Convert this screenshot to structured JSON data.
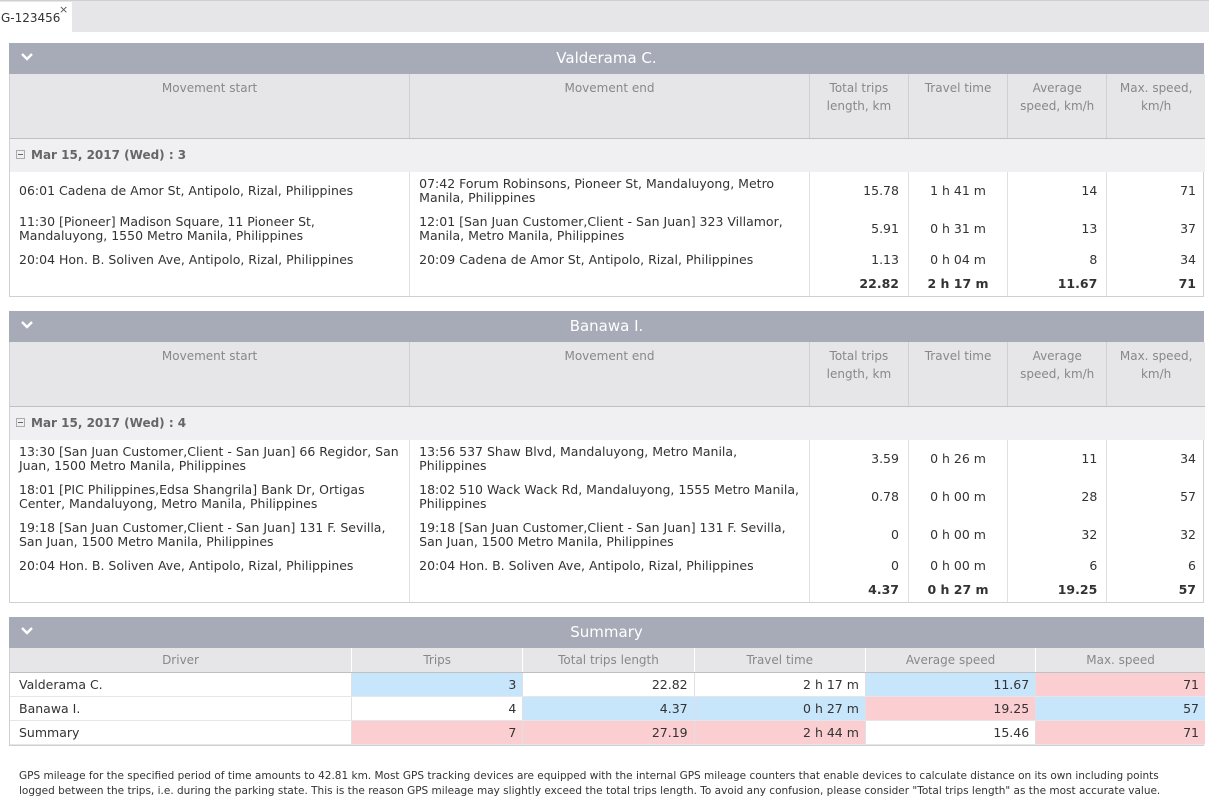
{
  "tab": {
    "label": "G-123456",
    "close": "×"
  },
  "columns": {
    "movement_start": "Movement start",
    "movement_end": "Movement end",
    "total_trips_length": "Total trips length, km",
    "travel_time": "Travel time",
    "average_speed": "Average speed, km/h",
    "max_speed": "Max. speed, km/h"
  },
  "drivers": [
    {
      "name": "Valderama C.",
      "group": "Mar 15, 2017 (Wed) : 3",
      "rows": [
        {
          "start": "06:01 Cadena de Amor St, Antipolo, Rizal, Philippines",
          "end": "07:42 Forum Robinsons, Pioneer St, Mandaluyong, Metro Manila, Philippines",
          "length": "15.78",
          "time": "1 h 41 m",
          "avg": "14",
          "max": "71"
        },
        {
          "start": "11:30 [Pioneer] Madison Square, 11 Pioneer St, Mandaluyong, 1550 Metro Manila, Philippines",
          "end": "12:01 [San Juan Customer,Client - San Juan] 323 Villamor, Manila, Metro Manila, Philippines",
          "length": "5.91",
          "time": "0 h 31 m",
          "avg": "13",
          "max": "37"
        },
        {
          "start": "20:04 Hon. B. Soliven Ave, Antipolo, Rizal, Philippines",
          "end": "20:09 Cadena de Amor St, Antipolo, Rizal, Philippines",
          "length": "1.13",
          "time": "0 h 04 m",
          "avg": "8",
          "max": "34"
        }
      ],
      "total": {
        "length": "22.82",
        "time": "2 h 17 m",
        "avg": "11.67",
        "max": "71"
      }
    },
    {
      "name": "Banawa I.",
      "group": "Mar 15, 2017 (Wed) : 4",
      "rows": [
        {
          "start": "13:30 [San Juan Customer,Client - San Juan] 66 Regidor, San Juan, 1500 Metro Manila, Philippines",
          "end": "13:56 537 Shaw Blvd, Mandaluyong, Metro Manila, Philippines",
          "length": "3.59",
          "time": "0 h 26 m",
          "avg": "11",
          "max": "34"
        },
        {
          "start": "18:01 [PIC Philippines,Edsa Shangrila] Bank Dr, Ortigas Center, Mandaluyong, Metro Manila, Philippines",
          "end": "18:02 510 Wack Wack Rd, Mandaluyong, 1555 Metro Manila, Philippines",
          "length": "0.78",
          "time": "0 h 00 m",
          "avg": "28",
          "max": "57"
        },
        {
          "start": "19:18 [San Juan Customer,Client - San Juan] 131 F. Sevilla, San Juan, 1500 Metro Manila, Philippines",
          "end": "19:18 [San Juan Customer,Client - San Juan] 131 F. Sevilla, San Juan, 1500 Metro Manila, Philippines",
          "length": "0",
          "time": "0 h 00 m",
          "avg": "32",
          "max": "32"
        },
        {
          "start": "20:04 Hon. B. Soliven Ave, Antipolo, Rizal, Philippines",
          "end": "20:04 Hon. B. Soliven Ave, Antipolo, Rizal, Philippines",
          "length": "0",
          "time": "0 h 00 m",
          "avg": "6",
          "max": "6"
        }
      ],
      "total": {
        "length": "4.37",
        "time": "0 h 27 m",
        "avg": "19.25",
        "max": "57"
      }
    }
  ],
  "summary": {
    "title": "Summary",
    "headers": [
      "Driver",
      "Trips",
      "Total trips length",
      "Travel time",
      "Average speed",
      "Max. speed"
    ],
    "rows": [
      {
        "cells": [
          "Valderama C.",
          "3",
          "22.82",
          "2 h 17 m",
          "11.67",
          "71"
        ],
        "highlight": [
          "",
          "blue",
          "",
          "",
          "blue",
          "red"
        ]
      },
      {
        "cells": [
          "Banawa I.",
          "4",
          "4.37",
          "0 h 27 m",
          "19.25",
          "57"
        ],
        "highlight": [
          "",
          "",
          "blue",
          "blue",
          "red",
          "blue"
        ]
      },
      {
        "cells": [
          "Summary",
          "7",
          "27.19",
          "2 h 44 m",
          "15.46",
          "71"
        ],
        "highlight": [
          "",
          "red",
          "red",
          "red",
          "",
          "red"
        ]
      }
    ]
  },
  "footnote": "GPS mileage for the specified period of time amounts to 42.81 km. Most GPS tracking devices are equipped with the internal GPS mileage counters that enable devices to calculate distance on its own including points logged between the trips, i.e. during the parking state. This is the reason GPS mileage may slightly exceed the total trips length. To avoid any confusion, please consider \"Total trips length\" as the most accurate value.",
  "colors": {
    "header": "#a7abb7",
    "highlight_blue": "#c7e5fb",
    "highlight_red": "#fbcfd1"
  }
}
